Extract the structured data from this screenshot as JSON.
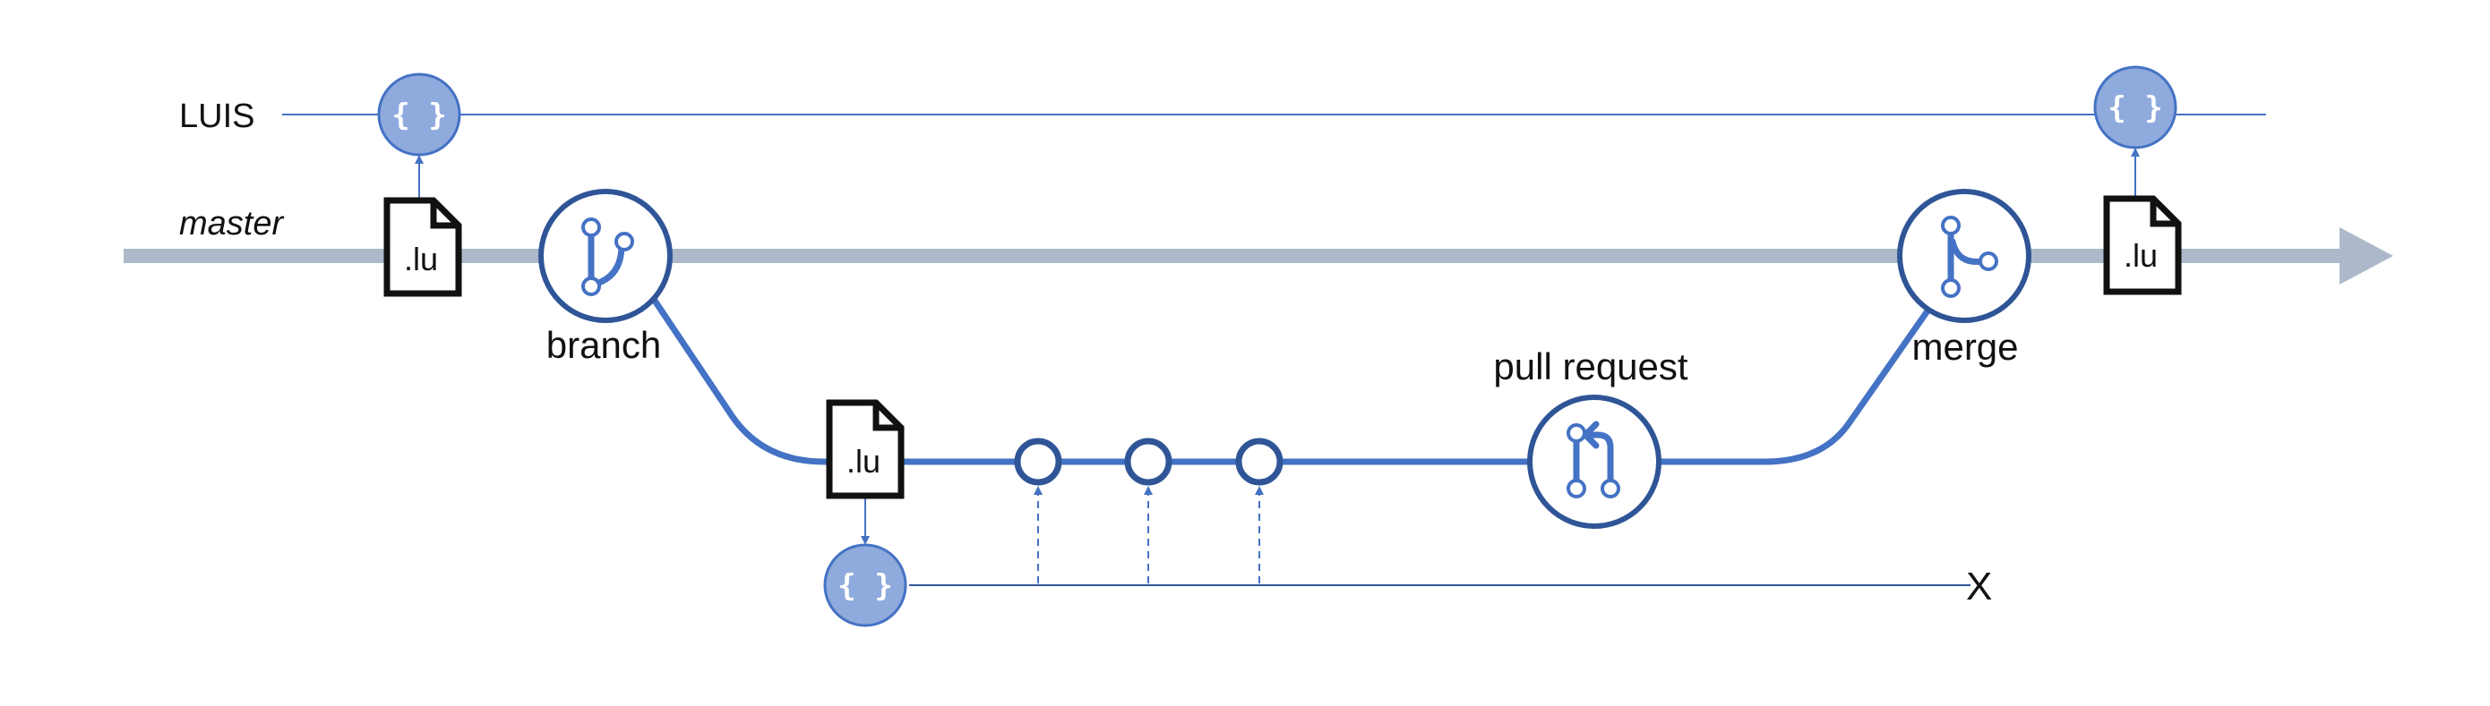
{
  "lanes": {
    "luis": "LUIS",
    "master": "master"
  },
  "nodes": {
    "branch": "branch",
    "pull_request": "pull request",
    "merge": "merge"
  },
  "files": {
    "lu_master_start": ".lu",
    "lu_feature": ".lu",
    "lu_master_end": ".lu"
  },
  "luis_models": {
    "top_left": "{ }",
    "top_right": "{ }",
    "feature": "{ }"
  },
  "end_marker": "X",
  "colors": {
    "master_line": "#adb9ca",
    "branch_line": "#4472c4",
    "node_outline": "#2f5597",
    "model_fill": "#8faadc",
    "model_outline": "#4472c4"
  }
}
